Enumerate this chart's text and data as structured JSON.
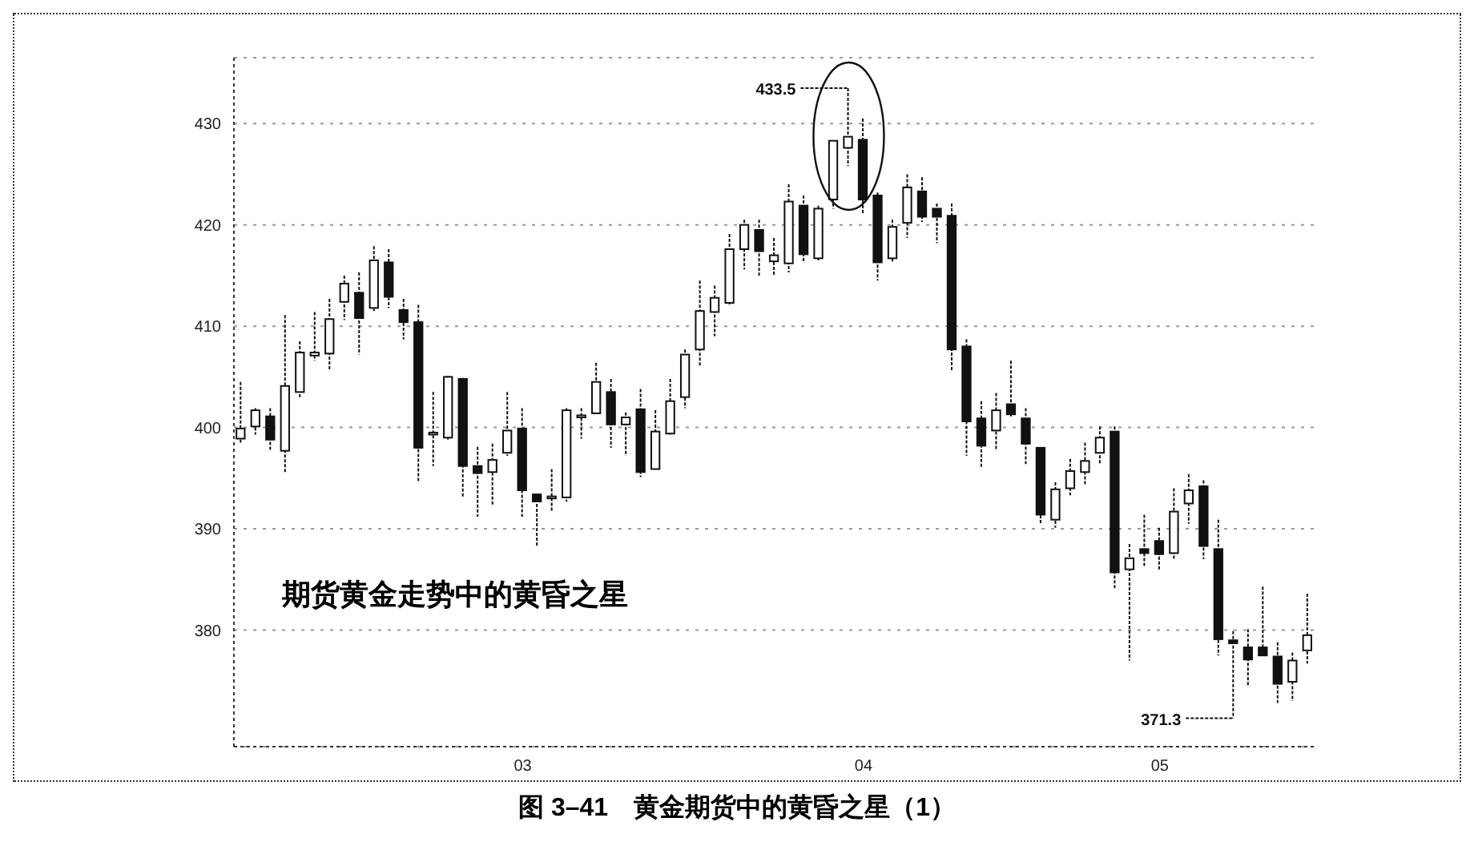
{
  "chart_data": {
    "type": "candlestick",
    "title": "图 3–41　黄金期货中的黄昏之星（1）",
    "categories": [
      null,
      null,
      null,
      null,
      null,
      null,
      null,
      null,
      null,
      null,
      null,
      null,
      null,
      null,
      null,
      null,
      null,
      null,
      null,
      "03",
      null,
      null,
      null,
      null,
      null,
      null,
      null,
      null,
      null,
      null,
      null,
      null,
      null,
      null,
      null,
      null,
      null,
      null,
      null,
      null,
      null,
      null,
      "04",
      null,
      null,
      null,
      null,
      null,
      null,
      null,
      null,
      null,
      null,
      null,
      null,
      null,
      null,
      null,
      null,
      null,
      null,
      null,
      "05",
      null,
      null,
      null,
      null,
      null,
      null,
      null,
      null,
      null,
      null
    ],
    "ohlc": [
      [
        398.9,
        404.5,
        398.5,
        399.9
      ],
      [
        400.1,
        401.9,
        399.3,
        401.7
      ],
      [
        401.1,
        401.9,
        397.7,
        398.8
      ],
      [
        397.7,
        411.1,
        395.6,
        404.1
      ],
      [
        403.5,
        408.5,
        403.0,
        407.4
      ],
      [
        407.1,
        411.4,
        406.6,
        407.4
      ],
      [
        407.3,
        412.7,
        405.6,
        410.7
      ],
      [
        412.4,
        415.0,
        410.6,
        414.2
      ],
      [
        413.3,
        415.3,
        407.2,
        410.8
      ],
      [
        411.8,
        417.9,
        411.5,
        416.5
      ],
      [
        416.3,
        417.6,
        411.8,
        412.9
      ],
      [
        411.6,
        412.7,
        408.7,
        410.4
      ],
      [
        410.4,
        412.1,
        394.6,
        398.0
      ],
      [
        399.3,
        403.5,
        396.2,
        399.5
      ],
      [
        399.0,
        405.1,
        398.8,
        405.0
      ],
      [
        404.8,
        404.9,
        393.1,
        396.2
      ],
      [
        396.2,
        398.1,
        391.2,
        395.5
      ],
      [
        395.6,
        398.4,
        392.4,
        396.8
      ],
      [
        397.5,
        403.5,
        397.2,
        399.7
      ],
      [
        399.9,
        401.9,
        391.2,
        393.8
      ],
      [
        393.4,
        393.4,
        388.2,
        392.7
      ],
      [
        393.0,
        395.9,
        391.7,
        393.2
      ],
      [
        393.1,
        401.9,
        392.7,
        401.7
      ],
      [
        401.0,
        401.9,
        398.9,
        401.2
      ],
      [
        401.4,
        406.4,
        401.4,
        404.5
      ],
      [
        403.5,
        404.8,
        398.0,
        400.3
      ],
      [
        400.3,
        401.5,
        397.2,
        401.0
      ],
      [
        401.8,
        403.8,
        395.1,
        395.6
      ],
      [
        395.9,
        401.7,
        395.9,
        399.6
      ],
      [
        399.4,
        404.8,
        399.3,
        402.6
      ],
      [
        403.0,
        407.7,
        401.9,
        407.2
      ],
      [
        407.7,
        414.5,
        406.1,
        411.5
      ],
      [
        411.4,
        414.0,
        409.0,
        412.8
      ],
      [
        412.3,
        419.1,
        412.1,
        417.6
      ],
      [
        417.6,
        420.5,
        415.6,
        420.0
      ],
      [
        419.5,
        420.5,
        415.0,
        417.4
      ],
      [
        416.4,
        418.7,
        415.0,
        417.0
      ],
      [
        416.2,
        424.0,
        415.3,
        422.3
      ],
      [
        421.9,
        422.9,
        416.3,
        417.1
      ],
      [
        416.7,
        421.9,
        416.5,
        421.6
      ],
      [
        422.5,
        428.3,
        421.6,
        428.3
      ],
      [
        427.6,
        433.5,
        425.8,
        428.7
      ],
      [
        428.4,
        430.5,
        421.1,
        422.5
      ],
      [
        422.9,
        423.2,
        414.5,
        416.3
      ],
      [
        416.7,
        420.5,
        416.3,
        419.8
      ],
      [
        420.2,
        425.0,
        418.7,
        423.7
      ],
      [
        423.3,
        424.7,
        420.3,
        420.8
      ],
      [
        421.6,
        422.1,
        418.2,
        420.8
      ],
      [
        420.9,
        422.1,
        405.6,
        407.7
      ],
      [
        408.0,
        408.7,
        397.2,
        400.6
      ],
      [
        400.9,
        402.6,
        396.1,
        398.2
      ],
      [
        399.7,
        403.4,
        397.7,
        401.7
      ],
      [
        402.3,
        406.6,
        401.1,
        401.3
      ],
      [
        400.9,
        401.9,
        396.4,
        398.4
      ],
      [
        398.0,
        398.0,
        390.4,
        391.4
      ],
      [
        390.9,
        394.6,
        390.1,
        393.9
      ],
      [
        394.0,
        396.9,
        393.3,
        395.7
      ],
      [
        395.6,
        398.5,
        394.3,
        396.7
      ],
      [
        397.5,
        400.1,
        396.4,
        399.0
      ],
      [
        399.6,
        400.1,
        384.1,
        385.7
      ],
      [
        386.0,
        388.5,
        377.0,
        387.1
      ],
      [
        388.0,
        391.4,
        386.2,
        387.6
      ],
      [
        388.8,
        390.1,
        385.9,
        387.5
      ],
      [
        387.6,
        394.0,
        387.0,
        391.7
      ],
      [
        392.5,
        395.4,
        390.5,
        393.8
      ],
      [
        394.2,
        394.8,
        387.0,
        388.3
      ],
      [
        388.0,
        390.9,
        377.5,
        379.1
      ],
      [
        379.0,
        379.9,
        371.3,
        378.7
      ],
      [
        378.3,
        380.1,
        374.4,
        377.1
      ],
      [
        378.3,
        384.3,
        377.5,
        377.5
      ],
      [
        377.4,
        378.8,
        372.8,
        374.7
      ],
      [
        374.9,
        377.8,
        373.0,
        377.0
      ],
      [
        378.0,
        383.6,
        376.7,
        379.5
      ]
    ],
    "ylim": [
      368.5,
      436.5
    ],
    "yticks": [
      380,
      390,
      400,
      410,
      420,
      430
    ],
    "grid": "y",
    "annotations": [
      "期货黄金走势中的黄昏之星",
      "433.5",
      "371.3"
    ]
  }
}
